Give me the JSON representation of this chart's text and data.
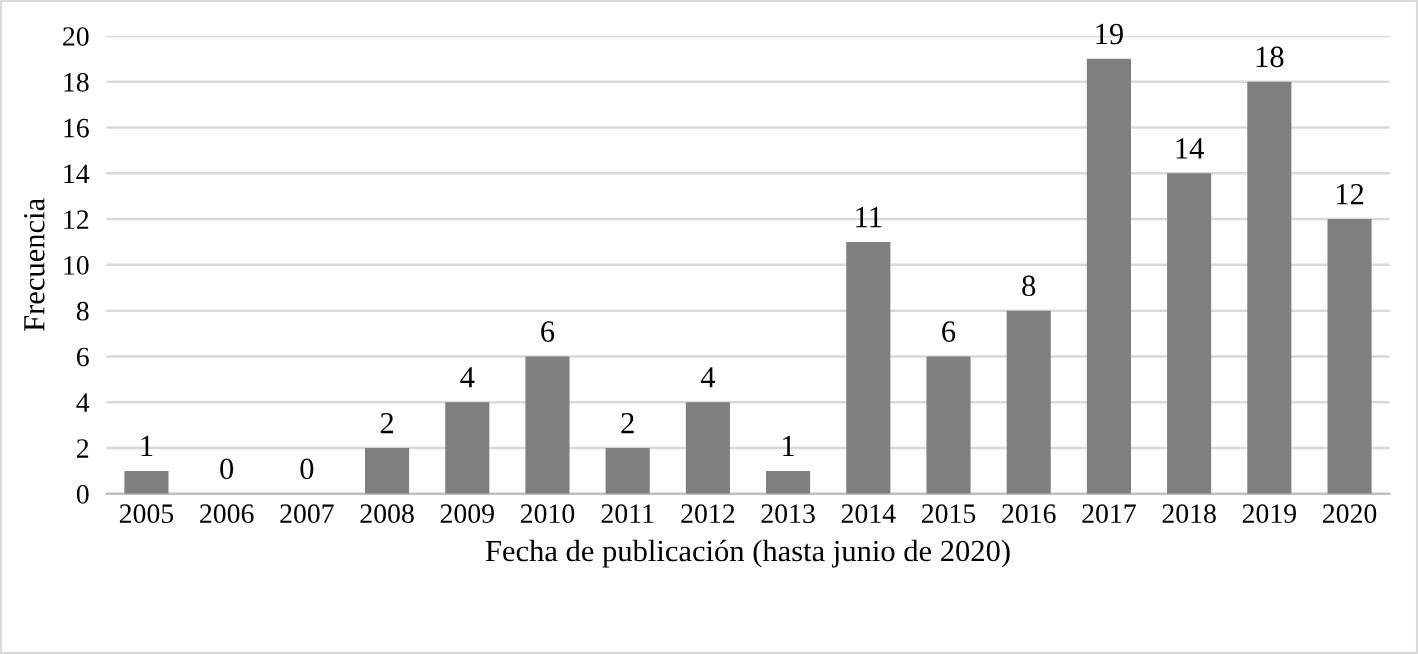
{
  "chart_data": {
    "type": "bar",
    "xlabel": "Fecha de publicación (hasta junio de 2020)",
    "ylabel": "Frecuencia",
    "categories": [
      "2005",
      "2006",
      "2007",
      "2008",
      "2009",
      "2010",
      "2011",
      "2012",
      "2013",
      "2014",
      "2015",
      "2016",
      "2017",
      "2018",
      "2019",
      "2020"
    ],
    "values": [
      1,
      0,
      0,
      2,
      4,
      6,
      2,
      4,
      1,
      11,
      6,
      8,
      19,
      14,
      18,
      12
    ],
    "color": "#7f7f7f",
    "ylim": [
      0,
      20
    ],
    "yticks": [
      0,
      2,
      4,
      6,
      8,
      10,
      12,
      14,
      16,
      18,
      20
    ],
    "grid": "y",
    "data_labels": true
  }
}
